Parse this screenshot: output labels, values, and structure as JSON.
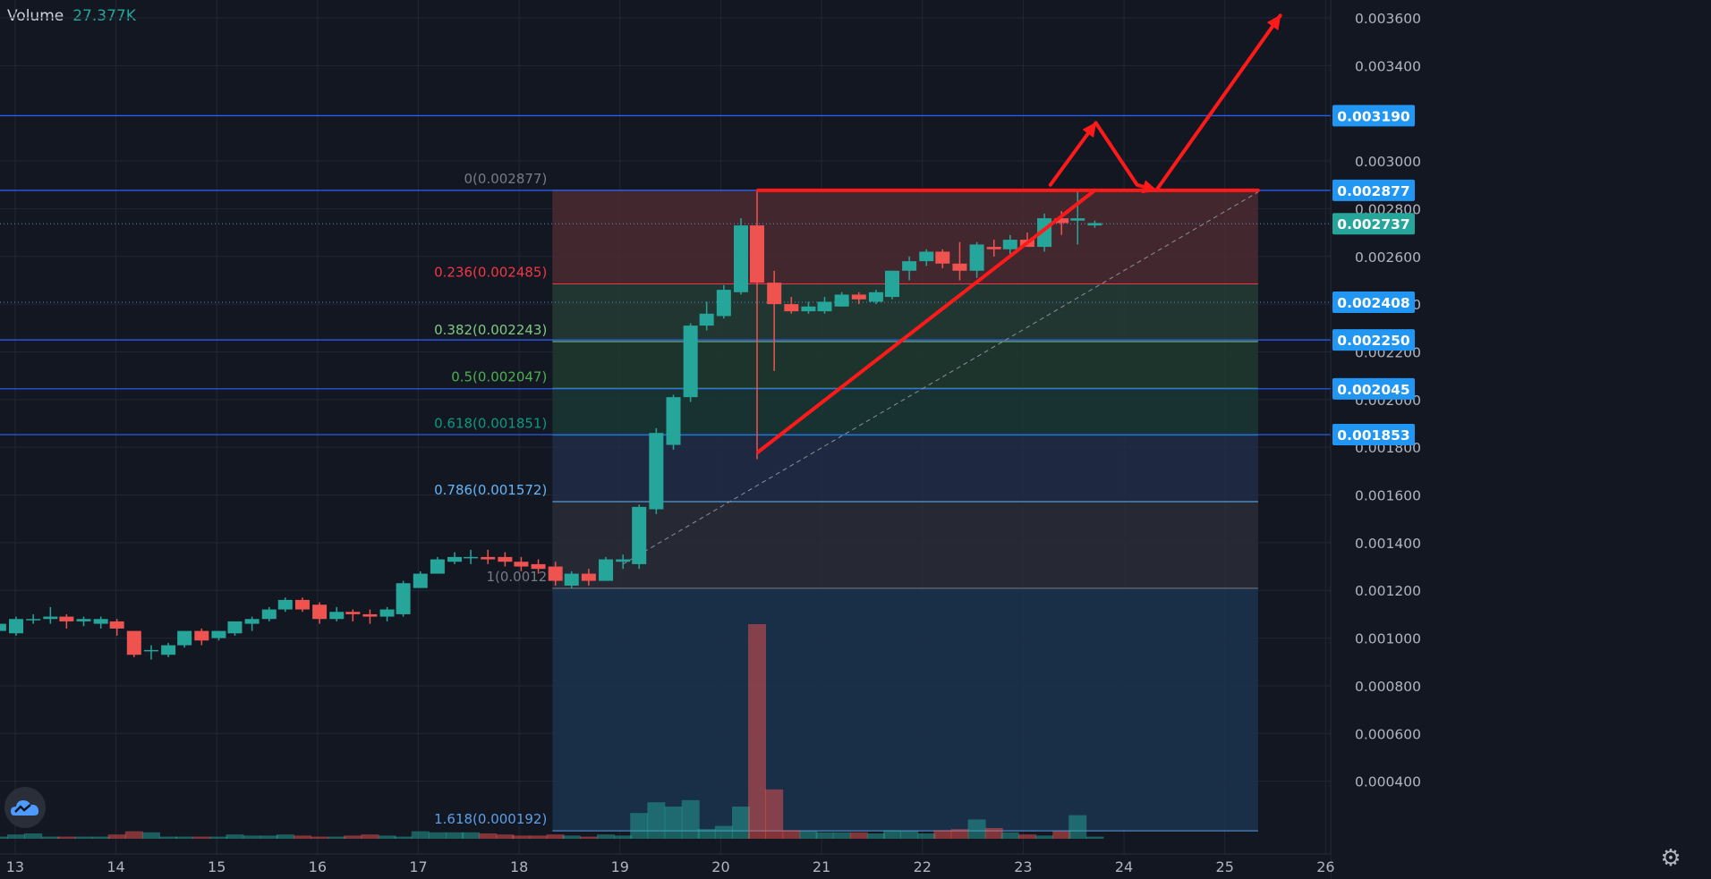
{
  "legend": {
    "label": "Volume",
    "value": "27.377K"
  },
  "icons": {
    "logo": "tradingview-cloud-icon",
    "settings": "gear-icon"
  },
  "colors": {
    "background": "#131722",
    "grid": "#232734",
    "up": "#26a69a",
    "down": "#ef5350",
    "annotation": "#ff1a1a",
    "hline": "#2962ff",
    "badge": "#2196f3",
    "last_price_badge": "#26a69a",
    "axis_text": "#b2b5be"
  },
  "chart_data": {
    "type": "candlestick",
    "x_axis": {
      "ticks": [
        "13",
        "14",
        "15",
        "16",
        "17",
        "18",
        "19",
        "20",
        "21",
        "22",
        "23",
        "24",
        "25",
        "26"
      ],
      "range": [
        12.85,
        26.05
      ]
    },
    "y_axis": {
      "range": [
        0.0001,
        0.0037
      ],
      "ticks": [
        "0.000400",
        "0.000600",
        "0.000800",
        "0.001000",
        "0.001200",
        "0.001400",
        "0.001600",
        "0.001800",
        "0.002000",
        "0.002200",
        "0.002400",
        "0.002600",
        "0.002800",
        "0.003000",
        "0.003400",
        "0.003600"
      ],
      "tick_values": [
        0.0004,
        0.0006,
        0.0008,
        0.001,
        0.0012,
        0.0014,
        0.0016,
        0.0018,
        0.002,
        0.0022,
        0.0024,
        0.0026,
        0.0028,
        0.003,
        0.0034,
        0.0036
      ]
    },
    "grid": true,
    "candles": [
      [
        12.84,
        0.00103,
        0.00106,
        0.00101,
        0.00106
      ],
      [
        13.01,
        0.00102,
        0.00109,
        0.00101,
        0.00108
      ],
      [
        13.18,
        0.00108,
        0.0011,
        0.00106,
        0.00108
      ],
      [
        13.35,
        0.00108,
        0.00113,
        0.00106,
        0.00109
      ],
      [
        13.51,
        0.00109,
        0.0011,
        0.00104,
        0.00107
      ],
      [
        13.68,
        0.00107,
        0.00109,
        0.00105,
        0.00108
      ],
      [
        13.85,
        0.00106,
        0.00109,
        0.00104,
        0.00108
      ],
      [
        14.01,
        0.00107,
        0.00108,
        0.00101,
        0.00104
      ],
      [
        14.18,
        0.00103,
        0.00103,
        0.00092,
        0.00093
      ],
      [
        14.35,
        0.00095,
        0.00097,
        0.00091,
        0.00095
      ],
      [
        14.52,
        0.00093,
        0.00098,
        0.00092,
        0.00097
      ],
      [
        14.68,
        0.00097,
        0.00103,
        0.00096,
        0.00103
      ],
      [
        14.85,
        0.00103,
        0.00104,
        0.00097,
        0.00099
      ],
      [
        15.02,
        0.001,
        0.00103,
        0.00099,
        0.00103
      ],
      [
        15.18,
        0.00102,
        0.00107,
        0.00101,
        0.00107
      ],
      [
        15.35,
        0.00106,
        0.00109,
        0.00103,
        0.00108
      ],
      [
        15.52,
        0.00108,
        0.00113,
        0.00107,
        0.00112
      ],
      [
        15.68,
        0.00112,
        0.00117,
        0.00111,
        0.00116
      ],
      [
        15.85,
        0.00116,
        0.00117,
        0.00111,
        0.00112
      ],
      [
        16.02,
        0.00114,
        0.00115,
        0.00106,
        0.00108
      ],
      [
        16.19,
        0.00108,
        0.00113,
        0.00107,
        0.00111
      ],
      [
        16.35,
        0.00111,
        0.00112,
        0.00107,
        0.0011
      ],
      [
        16.52,
        0.0011,
        0.00112,
        0.00106,
        0.00109
      ],
      [
        16.69,
        0.00109,
        0.00113,
        0.00107,
        0.00112
      ],
      [
        16.85,
        0.0011,
        0.00124,
        0.00109,
        0.00123
      ],
      [
        17.02,
        0.00121,
        0.00128,
        0.00121,
        0.00127
      ],
      [
        17.19,
        0.00127,
        0.00134,
        0.00127,
        0.00133
      ],
      [
        17.36,
        0.00132,
        0.00136,
        0.00131,
        0.00134
      ],
      [
        17.52,
        0.00134,
        0.00137,
        0.00131,
        0.00134
      ],
      [
        17.69,
        0.00134,
        0.00137,
        0.00131,
        0.00133
      ],
      [
        17.86,
        0.00134,
        0.00136,
        0.0013,
        0.00132
      ],
      [
        18.02,
        0.00132,
        0.00134,
        0.00128,
        0.0013
      ],
      [
        18.19,
        0.00131,
        0.00133,
        0.00127,
        0.00129
      ],
      [
        18.36,
        0.0013,
        0.00132,
        0.00122,
        0.00124
      ],
      [
        18.52,
        0.00122,
        0.00128,
        0.00121,
        0.00127
      ],
      [
        18.69,
        0.00127,
        0.00129,
        0.00122,
        0.00124
      ],
      [
        18.86,
        0.00124,
        0.00134,
        0.00124,
        0.00133
      ],
      [
        19.03,
        0.00132,
        0.00135,
        0.00129,
        0.00133
      ],
      [
        19.19,
        0.00131,
        0.00156,
        0.00129,
        0.00155
      ],
      [
        19.36,
        0.00154,
        0.00188,
        0.00152,
        0.00186
      ],
      [
        19.53,
        0.00181,
        0.00202,
        0.00179,
        0.00201
      ],
      [
        19.7,
        0.00201,
        0.00232,
        0.00199,
        0.00231
      ],
      [
        19.86,
        0.00231,
        0.00241,
        0.00229,
        0.00236
      ],
      [
        20.03,
        0.00235,
        0.00248,
        0.00234,
        0.00246
      ],
      [
        20.2,
        0.00245,
        0.00276,
        0.00244,
        0.00273
      ],
      [
        20.36,
        0.00273,
        0.00288,
        0.00175,
        0.00249
      ],
      [
        20.53,
        0.00249,
        0.00254,
        0.00212,
        0.0024
      ],
      [
        20.7,
        0.0024,
        0.00243,
        0.00236,
        0.00237
      ],
      [
        20.87,
        0.00237,
        0.00241,
        0.00236,
        0.00239
      ],
      [
        21.03,
        0.00237,
        0.00243,
        0.00236,
        0.00241
      ],
      [
        21.2,
        0.00239,
        0.00245,
        0.00239,
        0.00244
      ],
      [
        21.37,
        0.00244,
        0.00245,
        0.0024,
        0.00242
      ],
      [
        21.54,
        0.00241,
        0.00246,
        0.0024,
        0.00245
      ],
      [
        21.7,
        0.00243,
        0.00254,
        0.00242,
        0.00254
      ],
      [
        21.87,
        0.00254,
        0.0026,
        0.0025,
        0.00258
      ],
      [
        22.04,
        0.00258,
        0.00263,
        0.00256,
        0.00262
      ],
      [
        22.2,
        0.00262,
        0.00263,
        0.00255,
        0.00257
      ],
      [
        22.37,
        0.00257,
        0.00266,
        0.0025,
        0.00254
      ],
      [
        22.54,
        0.00254,
        0.00266,
        0.00251,
        0.00265
      ],
      [
        22.71,
        0.00264,
        0.00267,
        0.0026,
        0.00263
      ],
      [
        22.87,
        0.00263,
        0.00269,
        0.00261,
        0.00267
      ],
      [
        23.04,
        0.00267,
        0.0027,
        0.00265,
        0.00264
      ],
      [
        23.21,
        0.00264,
        0.00278,
        0.00262,
        0.00276
      ],
      [
        23.38,
        0.00276,
        0.00279,
        0.00269,
        0.00274
      ],
      [
        23.54,
        0.00275,
        0.00288,
        0.00265,
        0.00276
      ],
      [
        23.71,
        0.00273,
        0.00275,
        0.00272,
        0.00274
      ]
    ],
    "volume": {
      "label": "Volume",
      "last_value": "27.377K",
      "relative_heights": [
        0.01,
        0.02,
        0.025,
        0.01,
        0.01,
        0.01,
        0.01,
        0.02,
        0.035,
        0.03,
        0.01,
        0.01,
        0.01,
        0.01,
        0.02,
        0.015,
        0.015,
        0.02,
        0.015,
        0.01,
        0.01,
        0.015,
        0.02,
        0.015,
        0.01,
        0.035,
        0.03,
        0.03,
        0.03,
        0.025,
        0.02,
        0.015,
        0.015,
        0.02,
        0.015,
        0.01,
        0.02,
        0.015,
        0.12,
        0.17,
        0.15,
        0.18,
        0.045,
        0.06,
        0.15,
        1.0,
        0.23,
        0.04,
        0.035,
        0.03,
        0.03,
        0.03,
        0.025,
        0.04,
        0.035,
        0.025,
        0.04,
        0.045,
        0.09,
        0.05,
        0.03,
        0.02,
        0.015,
        0.035,
        0.11,
        0.01
      ]
    },
    "fibonacci": {
      "x_start": 18.33,
      "x_end": 25.33,
      "levels": [
        {
          "label": "0(0.002877)",
          "value": 0.002877,
          "color": "#787b86",
          "fill": "#4c2a30"
        },
        {
          "label": "0.236(0.002485)",
          "value": 0.002485,
          "color": "#f23645",
          "fill": "#263c34"
        },
        {
          "label": "0.382(0.002243)",
          "value": 0.002243,
          "color": "#81c784",
          "fill": "#1f3a2e"
        },
        {
          "label": "0.5(0.002047)",
          "value": 0.002047,
          "color": "#4caf50",
          "fill": "#193734"
        },
        {
          "label": "0.618(0.001851)",
          "value": 0.001851,
          "color": "#089981",
          "fill": "#212d47"
        },
        {
          "label": "0.786(0.001572)",
          "value": 0.001572,
          "color": "#64b5f6",
          "fill": "#2a2d36"
        },
        {
          "label": "1(0.0012",
          "value": 0.001209,
          "color": "#787b86",
          "fill": "#1b324d"
        },
        {
          "label": "1.618(0.000192)",
          "value": 0.000192,
          "color": "#5c9fe6",
          "fill": null
        }
      ]
    },
    "horizontal_lines": [
      {
        "value": 0.00319,
        "label": "0.003190"
      },
      {
        "value": 0.002877,
        "label": "0.002877"
      },
      {
        "value": 0.00225,
        "label": "0.002250"
      },
      {
        "value": 0.002045,
        "label": "0.002045"
      },
      {
        "value": 0.001853,
        "label": "0.001853"
      }
    ],
    "dotted_lines": [
      {
        "value": 0.002408,
        "label": "0.002408"
      },
      {
        "value": 0.002737,
        "label": "0.002737"
      }
    ],
    "price_badges": [
      {
        "value": 0.00319,
        "label": "0.003190",
        "kind": "line"
      },
      {
        "value": 0.002877,
        "label": "0.002877",
        "kind": "line"
      },
      {
        "value": 0.002737,
        "label": "0.002737",
        "kind": "last"
      },
      {
        "value": 0.002408,
        "label": "0.002408",
        "kind": "line"
      },
      {
        "value": 0.00225,
        "label": "0.002250",
        "kind": "line"
      },
      {
        "value": 0.002045,
        "label": "0.002045",
        "kind": "line"
      },
      {
        "value": 0.001853,
        "label": "0.001853",
        "kind": "line"
      }
    ],
    "trend_dashed": [
      [
        19.03,
        0.00131
      ],
      [
        25.33,
        0.00287
      ]
    ],
    "annotations": {
      "resistance": [
        [
          20.37,
          0.002877
        ],
        [
          25.33,
          0.002877
        ]
      ],
      "support": [
        [
          20.37,
          0.00178
        ],
        [
          23.71,
          0.002877
        ]
      ],
      "arrows": [
        [
          [
            23.27,
            0.0029
          ],
          [
            23.72,
            0.00316
          ],
          [
            24.13,
            0.0029
          ],
          [
            24.32,
            0.002877
          ],
          [
            25.55,
            0.00361
          ]
        ]
      ]
    }
  }
}
